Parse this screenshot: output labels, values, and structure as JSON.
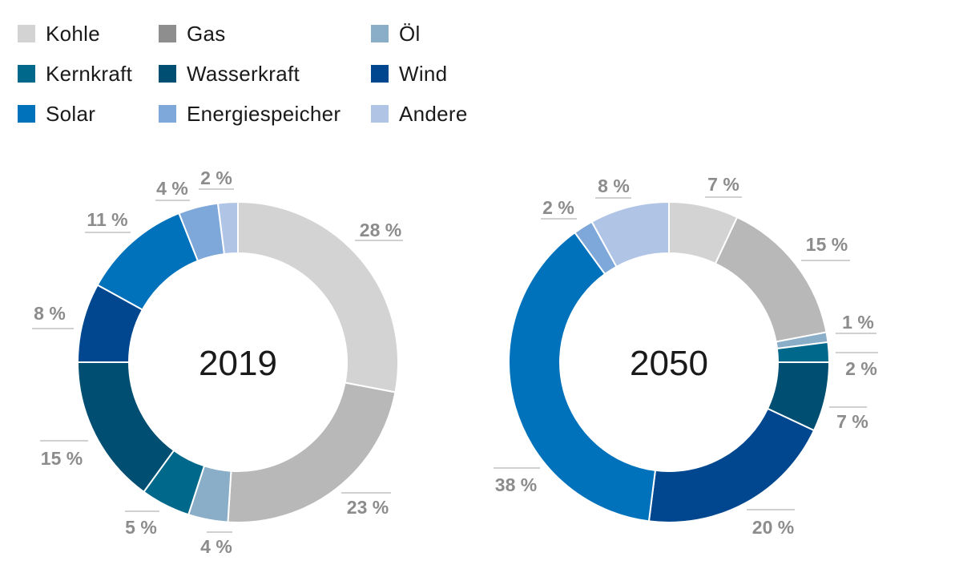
{
  "legend": [
    {
      "label": "Kohle",
      "color": "#d3d3d3"
    },
    {
      "label": "Gas",
      "color": "#8e8e8e"
    },
    {
      "label": "Öl",
      "color": "#8aaec8"
    },
    {
      "label": "Kernkraft",
      "color": "#00688b"
    },
    {
      "label": "Wasserkraft",
      "color": "#004e72"
    },
    {
      "label": "Wind",
      "color": "#00478f"
    },
    {
      "label": "Solar",
      "color": "#0072bc"
    },
    {
      "label": "Energiespeicher",
      "color": "#7fa8da"
    },
    {
      "label": "Andere",
      "color": "#b0c4e6"
    }
  ],
  "chart_data": [
    {
      "type": "pie",
      "title": "2019",
      "categories": [
        "Kohle",
        "Gas",
        "Öl",
        "Kernkraft",
        "Wasserkraft",
        "Wind",
        "Solar",
        "Energiespeicher",
        "Andere"
      ],
      "values": [
        28,
        23,
        4,
        5,
        15,
        8,
        11,
        4,
        2
      ],
      "labels": [
        "28 %",
        "23 %",
        "4 %",
        "5 %",
        "15 %",
        "8 %",
        "11 %",
        "4 %",
        "2 %"
      ],
      "colors": [
        "#d3d3d3",
        "#b8b8b8",
        "#8aaec8",
        "#00688b",
        "#004e72",
        "#00478f",
        "#0072bc",
        "#7fa8da",
        "#b0c4e6"
      ]
    },
    {
      "type": "pie",
      "title": "2050",
      "categories": [
        "Kohle",
        "Gas",
        "Öl",
        "Kernkraft",
        "Wasserkraft",
        "Wind",
        "Solar",
        "Energiespeicher",
        "Andere"
      ],
      "values": [
        7,
        15,
        1,
        2,
        7,
        20,
        38,
        2,
        8
      ],
      "labels": [
        "7 %",
        "15 %",
        "1 %",
        "2 %",
        "7 %",
        "20 %",
        "38 %",
        "2 %",
        "8 %"
      ],
      "colors": [
        "#d3d3d3",
        "#b8b8b8",
        "#8aaec8",
        "#00688b",
        "#004e72",
        "#00478f",
        "#0072bc",
        "#7fa8da",
        "#b0c4e6"
      ]
    }
  ]
}
